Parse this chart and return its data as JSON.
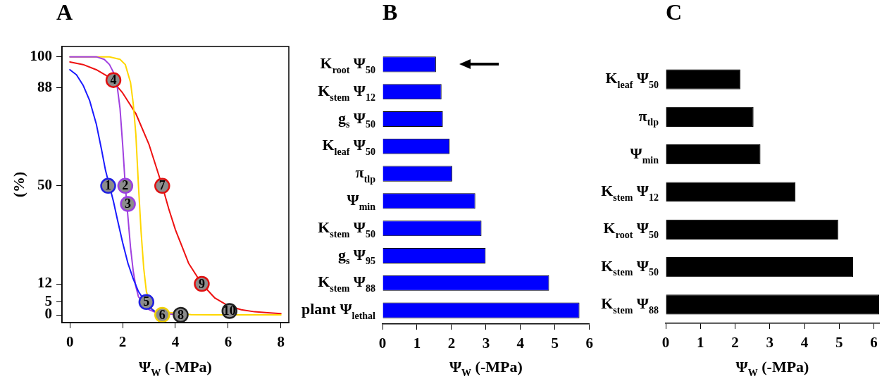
{
  "chart_data": [
    {
      "type": "line",
      "title": "A",
      "xlabel": "Ψ$_{W}$ (-MPa)",
      "ylabel": "(%)",
      "xlim": [
        -0.3,
        8.3
      ],
      "xticks": [
        0,
        2,
        4,
        6,
        8
      ],
      "ylim": [
        -3,
        104
      ],
      "yticks": [
        0,
        5,
        12,
        50,
        88,
        100
      ],
      "grid": false,
      "legend": false,
      "marker": "none",
      "line_style": "solid",
      "series": [
        {
          "type": "scatter",
          "marker": "circle",
          "color": "#8c8c8c",
          "colors": [
            "#2020e0",
            "#9b40e0",
            "#9b40e0",
            "#e01010",
            "#2020e0",
            "#f0d000",
            "#e01010",
            "#202020",
            "#e01010",
            "#202020"
          ],
          "x": [
            1.45,
            2.1,
            2.2,
            1.65,
            2.9,
            3.5,
            3.5,
            4.2,
            5.0,
            6.05
          ],
          "values": [
            50,
            50,
            43,
            91,
            5,
            0,
            50,
            0,
            12,
            1.5
          ]
        },
        {
          "color": "#1a1aff",
          "x": [
            0,
            0.25,
            0.5,
            0.75,
            1,
            1.2,
            1.35,
            1.65,
            1.8,
            2,
            2.2,
            2.4,
            2.6,
            2.8,
            3,
            3.2
          ],
          "values": [
            95,
            93,
            89,
            83,
            74,
            64,
            56,
            44,
            37,
            28,
            20,
            14,
            9,
            6,
            3,
            1.5
          ]
        },
        {
          "color": "#a040e0",
          "x": [
            0,
            1,
            1.3,
            1.5,
            1.65,
            1.8,
            1.9,
            2,
            2.1,
            2.2,
            2.3,
            2.4,
            2.5,
            2.6,
            3,
            3.3,
            4.2
          ],
          "values": [
            100,
            100,
            99,
            97,
            94,
            88,
            80,
            66,
            50,
            38,
            26,
            17,
            11,
            7,
            2,
            0.7,
            0
          ]
        },
        {
          "color": "#ffd700",
          "x": [
            0,
            1.5,
            1.9,
            2.1,
            2.3,
            2.4,
            2.5,
            2.55,
            2.6,
            2.7,
            2.8,
            2.9,
            3.1,
            3.2,
            4.6,
            5.5,
            6.6,
            7,
            8
          ],
          "values": [
            100,
            100,
            99,
            97,
            90,
            82,
            70,
            60,
            50,
            32,
            18,
            9,
            2.5,
            1.5,
            0.05,
            0,
            0,
            0,
            0
          ]
        },
        {
          "color": "#ee1111",
          "x": [
            0,
            0.5,
            1,
            1.5,
            2,
            2.5,
            3,
            3.25,
            3.5,
            3.75,
            4,
            4.5,
            5,
            5.5,
            6,
            6.5,
            7,
            7.5,
            8
          ],
          "values": [
            98,
            97,
            95,
            92,
            86,
            78,
            66,
            58,
            50,
            41,
            33,
            20,
            12,
            6.5,
            3.5,
            2,
            1.2,
            0.8,
            0.5
          ]
        }
      ],
      "annotations": [
        {
          "text": "1",
          "x": 1.45,
          "y": 50
        },
        {
          "text": "2",
          "x": 2.1,
          "y": 50
        },
        {
          "text": "3",
          "x": 2.2,
          "y": 43
        },
        {
          "text": "4",
          "x": 1.65,
          "y": 91
        },
        {
          "text": "5",
          "x": 2.9,
          "y": 5
        },
        {
          "text": "6",
          "x": 3.5,
          "y": 0
        },
        {
          "text": "7",
          "x": 3.5,
          "y": 50
        },
        {
          "text": "8",
          "x": 4.2,
          "y": 0
        },
        {
          "text": "9",
          "x": 5.0,
          "y": 12
        },
        {
          "text": "10",
          "x": 6.05,
          "y": 1.5
        }
      ]
    },
    {
      "type": "bar",
      "orientation": "horizontal",
      "title": "B",
      "xlabel": "Ψ$_{W}$ (-MPa)",
      "xlim": [
        0,
        6
      ],
      "xticks": [
        0,
        1,
        2,
        3,
        4,
        5,
        6
      ],
      "grid": false,
      "legend": false,
      "color": "#0000ff",
      "categories": [
        "K$_{root}$ Ψ$_{50}$",
        "K$_{stem}$ Ψ$_{12}$",
        "g$_{s}$ Ψ$_{50}$",
        "K$_{leaf}$ Ψ$_{50}$",
        "π$_{tlp}$",
        "Ψ$_{min}$",
        "K$_{stem}$ Ψ$_{50}$",
        "g$_{s}$ Ψ$_{95}$",
        "K$_{stem}$ Ψ$_{88}$",
        "plant Ψ$_{lethal}$"
      ],
      "values": [
        1.55,
        1.71,
        1.75,
        1.94,
        2.02,
        2.69,
        2.87,
        2.99,
        4.83,
        5.71
      ]
    },
    {
      "type": "bar",
      "orientation": "horizontal",
      "title": "C",
      "xlabel": "Ψ$_{W}$ (-MPa)",
      "xlim": [
        0,
        6.15
      ],
      "xticks": [
        0,
        1,
        2,
        3,
        4,
        5,
        6
      ],
      "grid": false,
      "legend": false,
      "color": "#000000",
      "categories": [
        "K$_{leaf}$ Ψ$_{50}$",
        "π$_{tlp}$",
        "Ψ$_{min}$",
        "K$_{stem}$ Ψ$_{12}$",
        "K$_{root}$ Ψ$_{50}$",
        "K$_{stem}$ Ψ$_{50}$",
        "K$_{stem}$ Ψ$_{88}$"
      ],
      "values": [
        2.15,
        2.53,
        2.73,
        3.74,
        4.97,
        5.4,
        6.15
      ]
    }
  ]
}
